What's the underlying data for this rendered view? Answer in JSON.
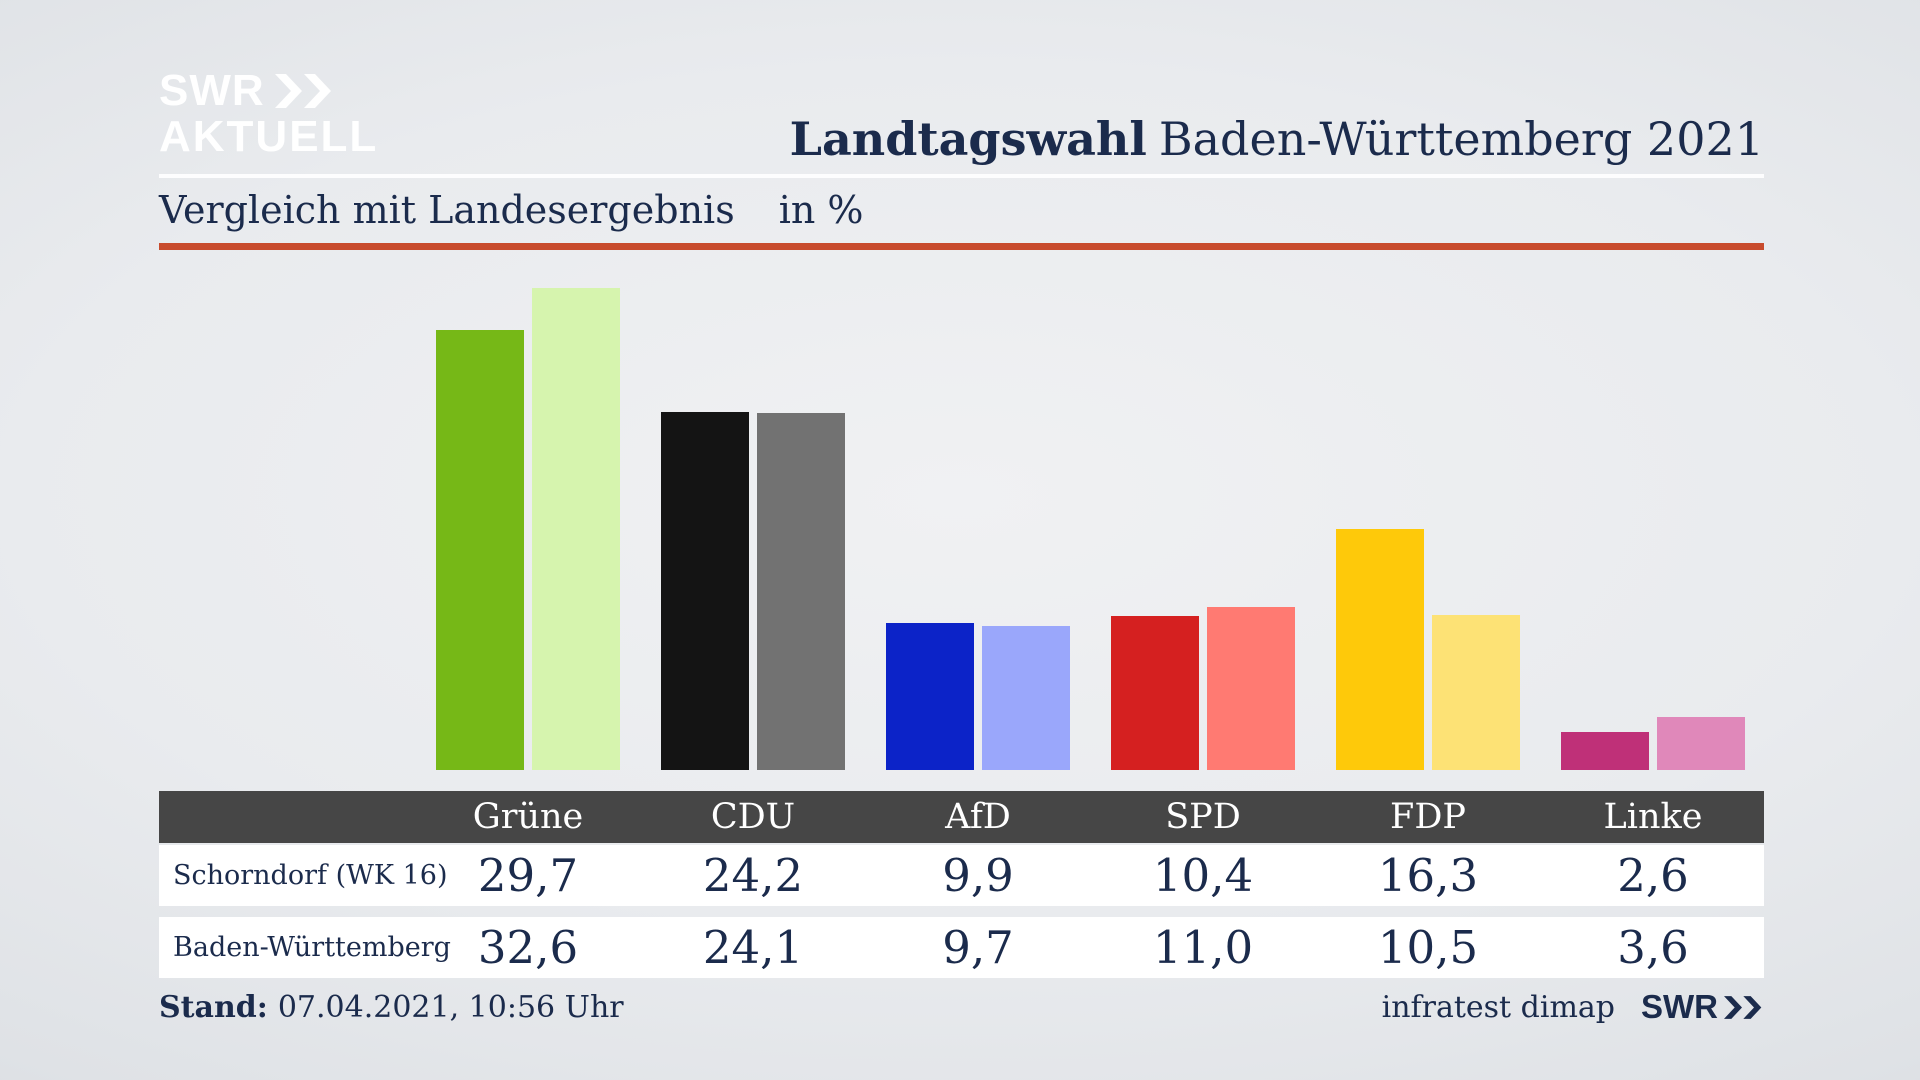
{
  "header": {
    "logo_line1": "SWR",
    "logo_line2": "AKTUELL",
    "title_bold": "Landtagswahl",
    "title_regular": "Baden-Württemberg 2021"
  },
  "chart": {
    "subtitle": "Vergleich mit Landesergebnis",
    "unit": "in %"
  },
  "chart_data": {
    "type": "bar",
    "title": "Vergleich mit Landesergebnis",
    "unit": "%",
    "categories": [
      "Grüne",
      "CDU",
      "AfD",
      "SPD",
      "FDP",
      "Linke"
    ],
    "series": [
      {
        "name": "Schorndorf (WK 16)",
        "values": [
          29.7,
          24.2,
          9.9,
          10.4,
          16.3,
          2.6
        ]
      },
      {
        "name": "Baden-Württemberg",
        "values": [
          32.6,
          24.1,
          9.7,
          11.0,
          10.5,
          3.6
        ]
      }
    ],
    "colors": [
      {
        "party": "Grüne",
        "main": "#76b817",
        "light": "#d6f4ae"
      },
      {
        "party": "CDU",
        "main": "#141414",
        "light": "#727272"
      },
      {
        "party": "AfD",
        "main": "#0c23c8",
        "light": "#9aa7fb"
      },
      {
        "party": "SPD",
        "main": "#d52020",
        "light": "#ff7a72"
      },
      {
        "party": "FDP",
        "main": "#fec90a",
        "light": "#fde275"
      },
      {
        "party": "Linke",
        "main": "#bf3078",
        "light": "#e088ba"
      }
    ],
    "ylim": [
      0,
      35
    ],
    "grid": false,
    "legend_position": "table-below"
  },
  "table": {
    "header": [
      "Grüne",
      "CDU",
      "AfD",
      "SPD",
      "FDP",
      "Linke"
    ],
    "rows": [
      {
        "label": "Schorndorf (WK 16)",
        "values": [
          "29,7",
          "24,2",
          "9,9",
          "10,4",
          "16,3",
          "2,6"
        ]
      },
      {
        "label": "Baden-Württemberg",
        "values": [
          "32,6",
          "24,1",
          "9,7",
          "11,0",
          "10,5",
          "3,6"
        ]
      }
    ]
  },
  "footer": {
    "stand_label": "Stand:",
    "stand_value": "07.04.2021, 10:56 Uhr",
    "source": "infratest dimap",
    "source_logo": "SWR"
  },
  "colors": {
    "navy": "#1b2b4c",
    "red_line": "#c84b2d",
    "table_header_bg": "#464646",
    "table_row_bg": "#ffffff",
    "logo_white": "#ffffff"
  }
}
